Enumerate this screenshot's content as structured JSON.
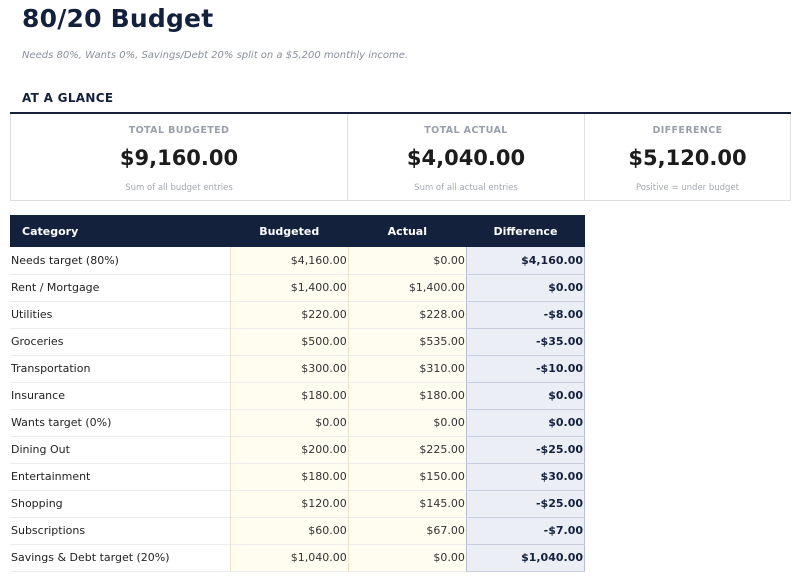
{
  "header": {
    "title": "80/20 Budget",
    "subtitle": "Needs 80%, Wants 0%, Savings/Debt 20% split on a $5,200 monthly income."
  },
  "glance": {
    "heading": "AT A GLANCE",
    "cards": [
      {
        "label": "TOTAL BUDGETED",
        "value": "$9,160.00",
        "note": "Sum of all budget entries"
      },
      {
        "label": "TOTAL ACTUAL",
        "value": "$4,040.00",
        "note": "Sum of all actual entries"
      },
      {
        "label": "DIFFERENCE",
        "value": "$5,120.00",
        "note": "Positive = under budget"
      }
    ]
  },
  "table": {
    "columns": [
      "Category",
      "Budgeted",
      "Actual",
      "Difference"
    ],
    "rows": [
      {
        "category": "Needs target (80%)",
        "budgeted": "$4,160.00",
        "actual": "$0.00",
        "difference": "$4,160.00"
      },
      {
        "category": "Rent / Mortgage",
        "budgeted": "$1,400.00",
        "actual": "$1,400.00",
        "difference": "$0.00"
      },
      {
        "category": "Utilities",
        "budgeted": "$220.00",
        "actual": "$228.00",
        "difference": "-$8.00"
      },
      {
        "category": "Groceries",
        "budgeted": "$500.00",
        "actual": "$535.00",
        "difference": "-$35.00"
      },
      {
        "category": "Transportation",
        "budgeted": "$300.00",
        "actual": "$310.00",
        "difference": "-$10.00"
      },
      {
        "category": "Insurance",
        "budgeted": "$180.00",
        "actual": "$180.00",
        "difference": "$0.00"
      },
      {
        "category": "Wants target (0%)",
        "budgeted": "$0.00",
        "actual": "$0.00",
        "difference": "$0.00"
      },
      {
        "category": "Dining Out",
        "budgeted": "$200.00",
        "actual": "$225.00",
        "difference": "-$25.00"
      },
      {
        "category": "Entertainment",
        "budgeted": "$180.00",
        "actual": "$150.00",
        "difference": "$30.00"
      },
      {
        "category": "Shopping",
        "budgeted": "$120.00",
        "actual": "$145.00",
        "difference": "-$25.00"
      },
      {
        "category": "Subscriptions",
        "budgeted": "$60.00",
        "actual": "$67.00",
        "difference": "-$7.00"
      },
      {
        "category": "Savings & Debt target (20%)",
        "budgeted": "$1,040.00",
        "actual": "$0.00",
        "difference": "$1,040.00"
      }
    ]
  },
  "colors": {
    "navy": "#14213d",
    "budget_cell_bg": "#fffcf0",
    "difference_cell_bg": "#eceef5",
    "muted_text": "#9aa0ab"
  }
}
